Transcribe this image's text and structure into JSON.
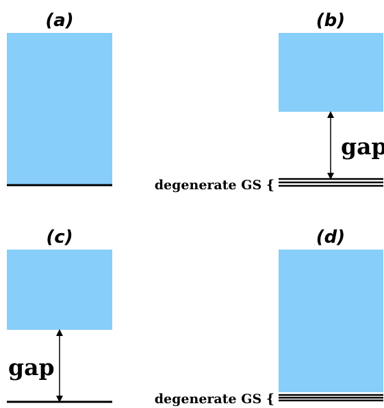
{
  "colors": {
    "continuum": "#87cefa",
    "line": "#000000"
  },
  "panels": {
    "a": {
      "label": "(a)"
    },
    "b": {
      "label": "(b)",
      "gap_label": "gap",
      "gs_label": "degenerate GS {"
    },
    "c": {
      "label": "(c)",
      "gap_label": "gap"
    },
    "d": {
      "label": "(d)",
      "gs_label": "degenerate GS {"
    }
  }
}
